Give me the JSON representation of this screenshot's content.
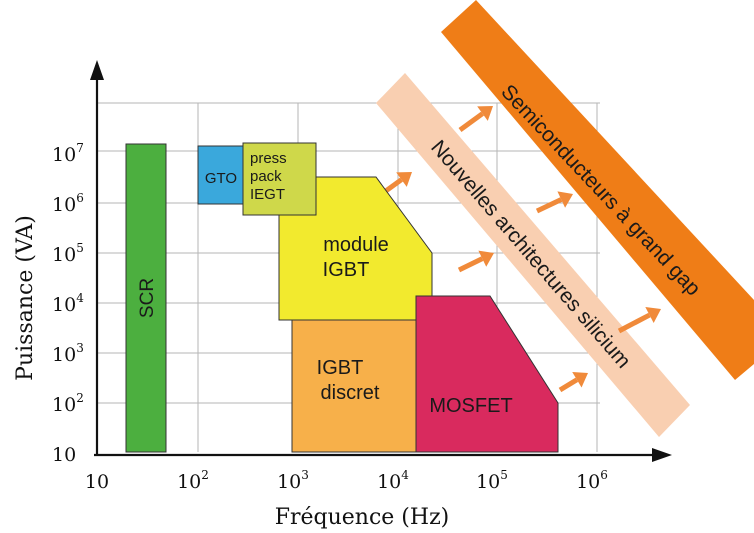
{
  "diagram": {
    "x_axis": {
      "title": "Fréquence (Hz)",
      "ticks": [
        {
          "base": "10",
          "exp": ""
        },
        {
          "base": "10",
          "exp": "2"
        },
        {
          "base": "10",
          "exp": "3"
        },
        {
          "base": "10",
          "exp": "4"
        },
        {
          "base": "10",
          "exp": "5"
        },
        {
          "base": "10",
          "exp": "6"
        }
      ]
    },
    "y_axis": {
      "title": "Puissance (VA)",
      "ticks": [
        {
          "base": "10",
          "exp": ""
        },
        {
          "base": "10",
          "exp": "2"
        },
        {
          "base": "10",
          "exp": "3"
        },
        {
          "base": "10",
          "exp": "4"
        },
        {
          "base": "10",
          "exp": "5"
        },
        {
          "base": "10",
          "exp": "6"
        },
        {
          "base": "10",
          "exp": "7"
        }
      ]
    },
    "regions": [
      {
        "id": "scr",
        "label": "SCR",
        "color": "#4caf3f"
      },
      {
        "id": "gto",
        "label": "GTO",
        "color": "#3aa8dc"
      },
      {
        "id": "press-pack",
        "label_lines": [
          "press",
          "pack",
          "IEGT"
        ],
        "color": "#cfd84a"
      },
      {
        "id": "module-igbt",
        "label_lines": [
          "module",
          "IGBT"
        ],
        "color": "#f2ea2e"
      },
      {
        "id": "igbt-discret",
        "label_lines": [
          "IGBT",
          "discret"
        ],
        "color": "#f7b04a"
      },
      {
        "id": "mosfet",
        "label": "MOSFET",
        "color": "#d92a5e"
      }
    ],
    "bands": [
      {
        "id": "nouvelles-architectures",
        "label": "Nouvelles architectures silicium",
        "color": "#f9cfb1"
      },
      {
        "id": "grand-gap",
        "label": "Semiconducteurs à grand gap",
        "color": "#ef7d17"
      }
    ],
    "arrow_color": "#f08a3a"
  }
}
